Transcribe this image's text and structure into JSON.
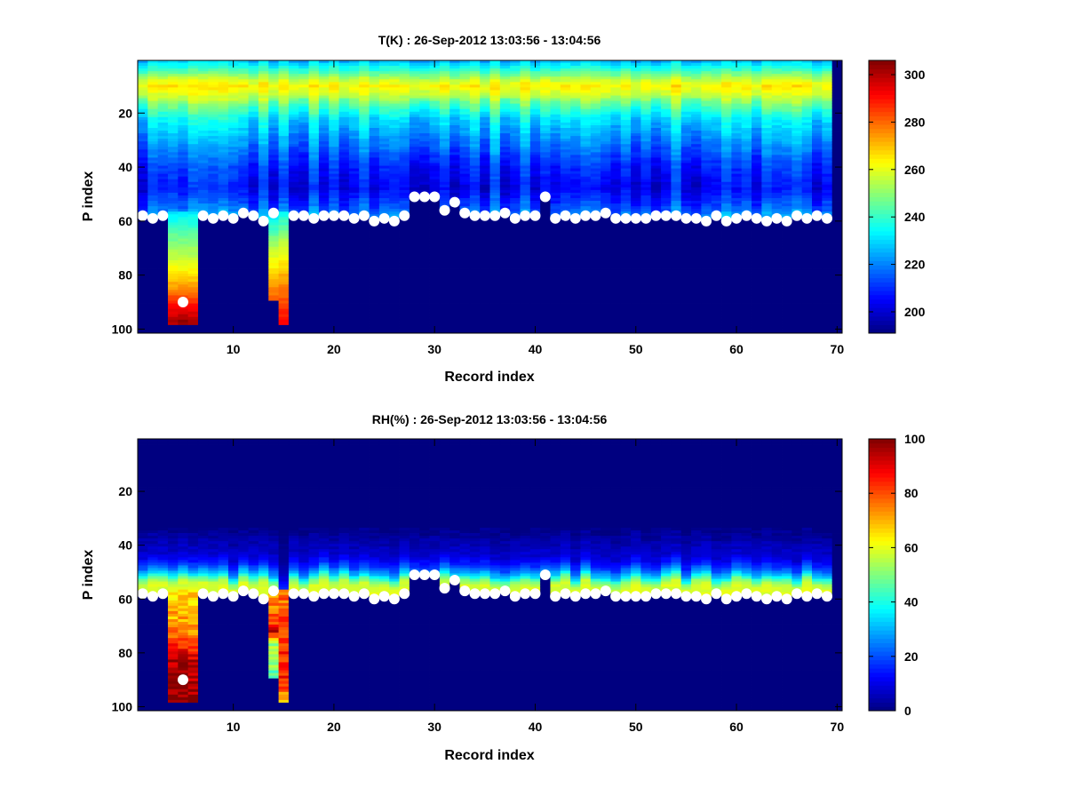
{
  "chart_data": [
    {
      "type": "heatmap",
      "title": "T(K) : 26-Sep-2012 13:03:56 - 13:04:56",
      "xlabel": "Record index",
      "ylabel": "P index",
      "xlim": [
        0.5,
        70.5
      ],
      "ylim": [
        0.5,
        101.5
      ],
      "y_reversed": true,
      "xticks": [
        10,
        20,
        30,
        40,
        50,
        60,
        70
      ],
      "yticks": [
        20,
        40,
        60,
        80,
        100
      ],
      "colorbar": {
        "range": [
          191,
          306
        ],
        "ticks": [
          200,
          220,
          240,
          260,
          280,
          300
        ],
        "colormap": "jet"
      },
      "mean_profile": [
        [
          1,
          228
        ],
        [
          4,
          240
        ],
        [
          8,
          258
        ],
        [
          10,
          264
        ],
        [
          13,
          258
        ],
        [
          17,
          245
        ],
        [
          22,
          232
        ],
        [
          30,
          222
        ],
        [
          40,
          210
        ],
        [
          48,
          205
        ],
        [
          55,
          215
        ],
        [
          60,
          225
        ]
      ],
      "column_variation": 8,
      "extended_columns": {
        "4": [
          [
            57,
            232
          ],
          [
            65,
            245
          ],
          [
            75,
            258
          ],
          [
            85,
            275
          ],
          [
            92,
            292
          ],
          [
            97,
            300
          ]
        ],
        "5": [
          [
            57,
            232
          ],
          [
            65,
            245
          ],
          [
            75,
            258
          ],
          [
            85,
            275
          ],
          [
            92,
            292
          ],
          [
            97,
            304
          ]
        ],
        "6": [
          [
            57,
            232
          ],
          [
            65,
            245
          ],
          [
            75,
            258
          ],
          [
            85,
            275
          ],
          [
            92,
            292
          ],
          [
            97,
            300
          ]
        ],
        "14": [
          [
            57,
            230
          ],
          [
            70,
            255
          ],
          [
            80,
            268
          ],
          [
            89,
            282
          ]
        ],
        "15": [
          [
            57,
            235
          ],
          [
            70,
            258
          ],
          [
            85,
            278
          ],
          [
            98,
            292
          ]
        ]
      }
    },
    {
      "type": "heatmap",
      "title": "RH(%) : 26-Sep-2012 13:03:56 - 13:04:56",
      "xlabel": "Record index",
      "ylabel": "P index",
      "xlim": [
        0.5,
        70.5
      ],
      "ylim": [
        0.5,
        101.5
      ],
      "y_reversed": true,
      "xticks": [
        10,
        20,
        30,
        40,
        50,
        60,
        70
      ],
      "yticks": [
        20,
        40,
        60,
        80,
        100
      ],
      "colorbar": {
        "range": [
          0,
          100
        ],
        "ticks": [
          0,
          20,
          40,
          60,
          80,
          100
        ],
        "colormap": "jet"
      },
      "mean_profile": [
        [
          1,
          0
        ],
        [
          33,
          0
        ],
        [
          38,
          4
        ],
        [
          44,
          8
        ],
        [
          48,
          18
        ],
        [
          51,
          32
        ],
        [
          53,
          48
        ],
        [
          55,
          58
        ],
        [
          60,
          60
        ]
      ],
      "column_variation": 2,
      "extended_columns": {
        "4": [
          [
            57,
            65
          ],
          [
            68,
            72
          ],
          [
            76,
            80
          ],
          [
            82,
            95
          ],
          [
            98,
            100
          ]
        ],
        "5": [
          [
            57,
            65
          ],
          [
            68,
            72
          ],
          [
            76,
            80
          ],
          [
            82,
            97
          ],
          [
            98,
            100
          ]
        ],
        "6": [
          [
            57,
            65
          ],
          [
            68,
            70
          ],
          [
            76,
            78
          ],
          [
            82,
            92
          ],
          [
            98,
            98
          ]
        ],
        "14": [
          [
            57,
            72
          ],
          [
            68,
            80
          ],
          [
            72,
            92
          ],
          [
            76,
            55
          ],
          [
            89,
            48
          ]
        ],
        "15": [
          [
            57,
            75
          ],
          [
            75,
            82
          ],
          [
            90,
            85
          ],
          [
            98,
            68
          ]
        ]
      },
      "low_columns": {
        "15": 0.3
      }
    }
  ],
  "records": 70,
  "levels": 101,
  "missing_records": [
    70
  ],
  "column_bottom": {
    "4": 98,
    "5": 98,
    "6": 98,
    "14": 89,
    "15": 98
  },
  "surface_index": [
    58,
    59,
    58,
    null,
    null,
    null,
    58,
    59,
    58,
    59,
    57,
    58,
    60,
    57,
    null,
    58,
    58,
    59,
    58,
    58,
    58,
    59,
    58,
    60,
    59,
    60,
    58,
    51,
    51,
    51,
    56,
    53,
    57,
    58,
    58,
    58,
    57,
    59,
    58,
    58,
    51,
    59,
    58,
    59,
    58,
    58,
    57,
    59,
    59,
    59,
    59,
    58,
    58,
    58,
    59,
    59,
    60,
    58,
    60,
    59,
    58,
    59,
    60,
    59,
    60,
    58,
    59,
    58,
    59,
    null
  ],
  "extra_markers": [
    {
      "record": 5,
      "level": 90
    }
  ]
}
